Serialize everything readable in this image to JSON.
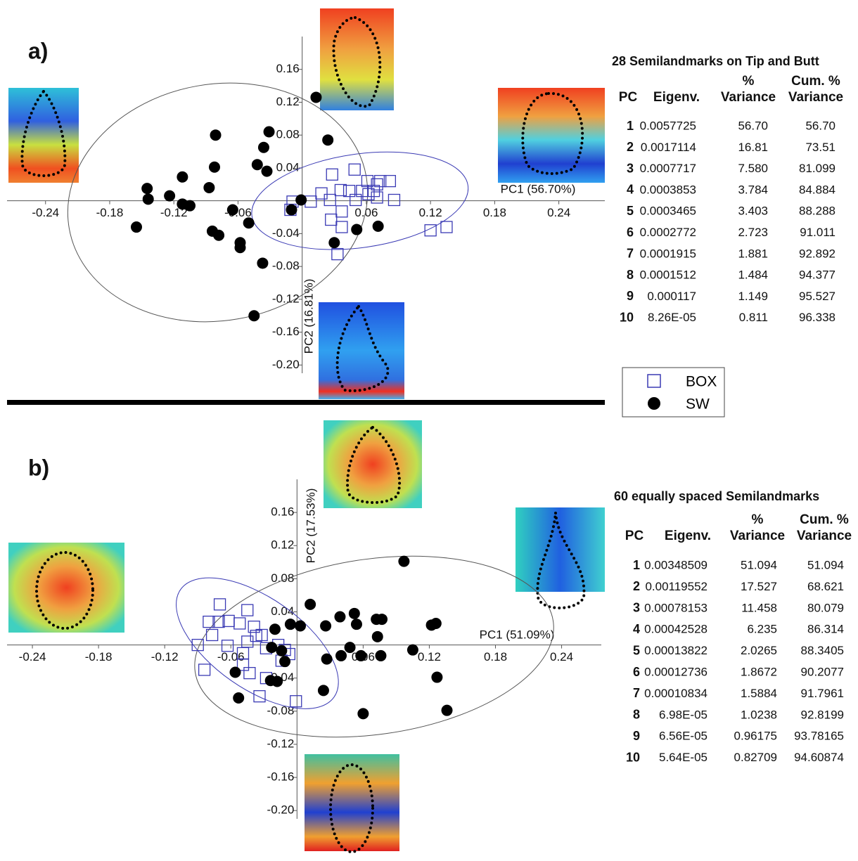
{
  "panel_labels": [
    "a)",
    "b)"
  ],
  "chart_data": [
    {
      "type": "scatter",
      "x_label": "PC1 (56.70%)",
      "y_label": "PC2 (16.81%)",
      "xlim": [
        -0.276,
        0.283
      ],
      "ylim": [
        -0.21,
        0.2
      ],
      "xticks": [
        -0.24,
        -0.18,
        -0.12,
        -0.06,
        0.06,
        0.12,
        0.18,
        0.24
      ],
      "yticks": [
        {
          "value": -0.2,
          "label": "-0.20"
        },
        -0.16,
        -0.12,
        -0.08,
        -0.04,
        0.04,
        0.08,
        0.12,
        0.16
      ],
      "series": [
        {
          "name": "BOX",
          "color": "#3a3ab4",
          "marker": "square",
          "x": [
            0.049,
            0.028,
            0.061,
            0.07,
            0.073,
            0.082,
            0.044,
            0.056,
            0.067,
            0.018,
            0.036,
            0.008,
            -0.009,
            -0.011,
            0.026,
            0.086,
            0.05,
            0.062,
            0.037,
            0.027,
            0.037,
            0.033,
            0.12,
            0.135,
            0.07
          ],
          "y": [
            0.038,
            0.032,
            0.024,
            0.02,
            0.024,
            0.024,
            0.012,
            0.012,
            0.012,
            0.009,
            0.013,
            -0.001,
            -0.001,
            -0.011,
            0.001,
            0.001,
            0.001,
            0.008,
            -0.013,
            -0.023,
            -0.032,
            -0.065,
            -0.036,
            -0.032,
            0.004
          ],
          "ellipse": {
            "cx": 0.054,
            "cy": 0.0,
            "rx": 0.102,
            "ry": 0.057,
            "angle": -8
          }
        },
        {
          "name": "SW",
          "color": "#000000",
          "marker": "circle",
          "x": [
            0.013,
            0.024,
            -0.081,
            -0.031,
            -0.036,
            -0.042,
            -0.033,
            -0.082,
            -0.112,
            -0.145,
            -0.144,
            -0.124,
            -0.112,
            -0.105,
            -0.087,
            -0.065,
            -0.155,
            -0.05,
            -0.084,
            -0.078,
            -0.058,
            -0.058,
            -0.037,
            -0.045,
            -0.01,
            -0.001,
            0.051,
            0.071,
            0.03
          ],
          "y": [
            0.126,
            0.074,
            0.08,
            0.084,
            0.065,
            0.044,
            0.036,
            0.041,
            0.029,
            0.015,
            0.002,
            0.006,
            -0.004,
            -0.006,
            0.016,
            -0.011,
            -0.032,
            -0.027,
            -0.037,
            -0.042,
            -0.051,
            -0.057,
            -0.076,
            -0.14,
            -0.011,
            0.001,
            -0.035,
            -0.031,
            -0.051
          ],
          "ellipse": {
            "cx": -0.079,
            "cy": -0.002,
            "rx": 0.141,
            "ry": 0.144,
            "angle": -10
          }
        }
      ]
    },
    {
      "type": "scatter",
      "x_label": "PC1 (51.09%)",
      "y_label": "PC2 (17.53%)",
      "xlim": [
        -0.263,
        0.276
      ],
      "ylim": [
        -0.21,
        0.2
      ],
      "xticks": [
        -0.24,
        -0.18,
        -0.12,
        -0.06,
        0.06,
        0.12,
        0.18,
        0.24
      ],
      "yticks": [
        {
          "value": -0.2,
          "label": "-0.20"
        },
        -0.16,
        -0.12,
        -0.08,
        -0.04,
        0.04,
        0.08,
        0.12,
        0.16
      ],
      "series": [
        {
          "name": "BOX",
          "color": "#3a3ab4",
          "marker": "square",
          "x": [
            -0.07,
            -0.045,
            -0.08,
            -0.071,
            -0.062,
            -0.052,
            -0.039,
            -0.032,
            -0.09,
            -0.077,
            -0.063,
            -0.049,
            -0.045,
            -0.037,
            -0.028,
            -0.017,
            -0.011,
            -0.014,
            -0.049,
            -0.043,
            -0.028,
            -0.084,
            -0.034,
            -0.001,
            -0.007
          ],
          "y": [
            0.049,
            0.042,
            0.028,
            0.028,
            0.029,
            0.026,
            0.022,
            0.012,
            0.0,
            0.012,
            -0.001,
            -0.01,
            0.004,
            0.011,
            -0.004,
            0.0,
            -0.006,
            -0.019,
            -0.024,
            -0.034,
            -0.04,
            -0.03,
            -0.062,
            -0.068,
            -0.011
          ],
          "ellipse": {
            "cx": -0.036,
            "cy": 0.002,
            "rx": 0.085,
            "ry": 0.055,
            "angle": 35
          }
        },
        {
          "name": "SW",
          "color": "#000000",
          "marker": "circle",
          "x": [
            0.097,
            0.012,
            0.026,
            0.039,
            0.052,
            0.054,
            0.072,
            0.077,
            0.073,
            0.122,
            0.126,
            0.105,
            -0.006,
            0.003,
            -0.02,
            -0.023,
            -0.014,
            0.048,
            0.04,
            0.058,
            0.076,
            0.027,
            -0.011,
            0.024,
            -0.024,
            -0.056,
            -0.053,
            0.127,
            0.136,
            0.06,
            -0.018
          ],
          "y": [
            0.101,
            0.049,
            0.023,
            0.034,
            0.038,
            0.025,
            0.031,
            0.031,
            0.01,
            0.024,
            0.026,
            -0.006,
            0.025,
            0.023,
            0.019,
            -0.003,
            -0.007,
            -0.003,
            -0.013,
            -0.013,
            -0.013,
            -0.017,
            -0.02,
            -0.055,
            -0.043,
            -0.033,
            -0.064,
            -0.039,
            -0.079,
            -0.083,
            -0.044
          ],
          "ellipse": {
            "cx": 0.07,
            "cy": -0.002,
            "rx": 0.164,
            "ry": 0.106,
            "angle": -8
          }
        }
      ]
    }
  ],
  "tables": [
    {
      "title": "28 Semilandmarks on Tip and Butt",
      "headers": [
        [
          "PC"
        ],
        [
          "Eigenv."
        ],
        [
          "%",
          "Variance"
        ],
        [
          "Cum. %",
          "Variance"
        ]
      ],
      "rows": [
        [
          "1",
          "0.0057725",
          "56.70",
          "56.70"
        ],
        [
          "2",
          "0.0017114",
          "16.81",
          "73.51"
        ],
        [
          "3",
          "0.0007717",
          "7.580",
          "81.099"
        ],
        [
          "4",
          "0.0003853",
          "3.784",
          "84.884"
        ],
        [
          "5",
          "0.0003465",
          "3.403",
          "88.288"
        ],
        [
          "6",
          "0.0002772",
          "2.723",
          "91.011"
        ],
        [
          "7",
          "0.0001915",
          "1.881",
          "92.892"
        ],
        [
          "8",
          "0.0001512",
          "1.484",
          "94.377"
        ],
        [
          "9",
          "0.000117",
          "1.149",
          "95.527"
        ],
        [
          "10",
          "8.26E-05",
          "0.811",
          "96.338"
        ]
      ]
    },
    {
      "title": "60 equally spaced Semilandmarks",
      "headers": [
        [
          "PC"
        ],
        [
          "Eigenv."
        ],
        [
          "%",
          "Variance"
        ],
        [
          "Cum. %",
          "Variance"
        ]
      ],
      "rows": [
        [
          "1",
          "0.00348509",
          "51.094",
          "51.094"
        ],
        [
          "2",
          "0.00119552",
          "17.527",
          "68.621"
        ],
        [
          "3",
          "0.00078153",
          "11.458",
          "80.079"
        ],
        [
          "4",
          "0.00042528",
          "6.235",
          "86.314"
        ],
        [
          "5",
          "0.00013822",
          "2.0265",
          "88.3405"
        ],
        [
          "6",
          "0.00012736",
          "1.8672",
          "90.2077"
        ],
        [
          "7",
          "0.00010834",
          "1.5884",
          "91.7961"
        ],
        [
          "8",
          "6.98E-05",
          "1.0238",
          "92.8199"
        ],
        [
          "9",
          "6.56E-05",
          "0.96175",
          "93.78165"
        ],
        [
          "10",
          "5.64E-05",
          "0.82709",
          "94.60874"
        ]
      ]
    }
  ]
}
